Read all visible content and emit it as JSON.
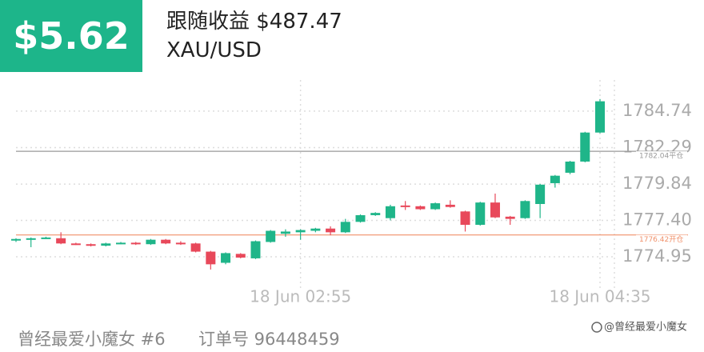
{
  "chart_data": {
    "type": "candlestick",
    "badge": "$5.62",
    "title": "跟随收益 $487.47",
    "subtitle": "XAU/USD",
    "footer": [
      "曾经最爱小魔女 #6",
      "订单号 96448459"
    ],
    "watermark": "@曾经最爱小魔女",
    "categories": [
      null,
      null,
      null,
      null,
      null,
      null,
      null,
      null,
      null,
      null,
      null,
      null,
      null,
      null,
      null,
      null,
      null,
      null,
      null,
      "18 Jun 02:55",
      null,
      null,
      null,
      null,
      null,
      null,
      null,
      null,
      null,
      null,
      null,
      null,
      null,
      null,
      null,
      null,
      null,
      null,
      null,
      "18 Jun 04:35"
    ],
    "open": [
      1776.05,
      1776.15,
      1776.2,
      1776.2,
      1775.85,
      1775.8,
      1775.7,
      1775.85,
      1775.9,
      1775.8,
      1776.1,
      1775.9,
      1775.85,
      1775.3,
      1774.55,
      1775.15,
      1774.85,
      1775.95,
      1776.5,
      1776.6,
      1776.7,
      1776.85,
      1776.6,
      1777.3,
      1777.75,
      1777.55,
      1778.4,
      1778.35,
      1778.15,
      1778.45,
      1778.0,
      1777.1,
      1778.6,
      1777.65,
      1777.55,
      1778.5,
      1779.9,
      1780.6,
      1781.35,
      1783.3
    ],
    "high": [
      1776.2,
      1776.25,
      1776.3,
      1776.6,
      1775.9,
      1775.85,
      1775.9,
      1775.95,
      1775.95,
      1776.15,
      1776.15,
      1776.0,
      1775.9,
      1775.35,
      1775.25,
      1775.2,
      1776.05,
      1776.75,
      1776.8,
      1776.8,
      1776.9,
      1777.0,
      1777.5,
      1777.8,
      1777.95,
      1778.45,
      1778.7,
      1778.4,
      1778.6,
      1778.75,
      1778.05,
      1778.65,
      1779.2,
      1777.7,
      1778.75,
      1779.85,
      1780.45,
      1781.4,
      1783.35,
      1785.55
    ],
    "low": [
      1775.95,
      1775.6,
      1776.15,
      1775.8,
      1775.75,
      1775.65,
      1775.65,
      1775.8,
      1775.75,
      1775.75,
      1775.8,
      1775.75,
      1775.25,
      1774.1,
      1774.45,
      1774.85,
      1774.8,
      1775.9,
      1776.3,
      1776.1,
      1776.6,
      1776.4,
      1776.55,
      1777.25,
      1777.7,
      1777.4,
      1778.1,
      1778.1,
      1778.1,
      1778.25,
      1776.65,
      1777.05,
      1777.55,
      1777.1,
      1777.5,
      1777.55,
      1779.6,
      1780.5,
      1781.3,
      1783.25
    ],
    "close": [
      1776.15,
      1776.2,
      1776.25,
      1775.85,
      1775.8,
      1775.7,
      1775.85,
      1775.9,
      1775.8,
      1776.1,
      1775.85,
      1775.85,
      1775.3,
      1774.45,
      1775.2,
      1774.9,
      1776.0,
      1776.7,
      1776.65,
      1776.75,
      1776.85,
      1776.6,
      1777.3,
      1777.75,
      1777.9,
      1778.35,
      1778.3,
      1778.15,
      1778.55,
      1778.3,
      1777.1,
      1778.6,
      1777.6,
      1777.5,
      1778.7,
      1779.8,
      1780.4,
      1781.35,
      1783.3,
      1785.4
    ],
    "up_color": "#1fb589",
    "down_color": "#e8485a",
    "ylim": [
      1772.32,
      1786.83
    ],
    "yticks": [
      1784.74,
      1782.29,
      1779.84,
      {
        "value": 1777.4,
        "label": "1777.40"
      },
      1774.95
    ],
    "reference_lines": [
      {
        "value": 1782.04,
        "label": "1782.04平仓",
        "color": "#9a9a9a"
      },
      {
        "value": 1776.42,
        "label": "1776.42开仓",
        "color": "#f0906a"
      }
    ],
    "grid": true
  }
}
